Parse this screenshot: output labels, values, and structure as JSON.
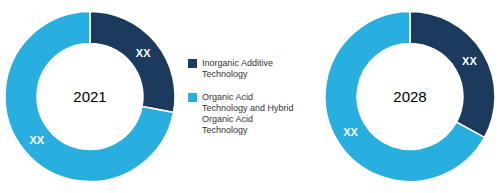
{
  "chart_data": [
    {
      "type": "donut",
      "annotations": [
        "2021"
      ],
      "categories": [
        "Inorganic Additive\nTechnology",
        "Organic Acid\nTechnology and Hybrid\nOrganic Acid\nTechnology"
      ],
      "values": [
        28,
        72
      ],
      "colors": [
        "#1b3a5c",
        "#29aee0"
      ],
      "data_labels": true,
      "value_labels": [
        "XX",
        "XX"
      ],
      "legend": "right"
    },
    {
      "type": "donut",
      "annotations": [
        "2028"
      ],
      "categories": [
        "Inorganic Additive\nTechnology",
        "Organic Acid\nTechnology and Hybrid\nOrganic Acid\nTechnology"
      ],
      "values": [
        33,
        67
      ],
      "colors": [
        "#1b3a5c",
        "#29aee0"
      ],
      "data_labels": true,
      "value_labels": [
        "XX",
        "XX"
      ]
    }
  ]
}
